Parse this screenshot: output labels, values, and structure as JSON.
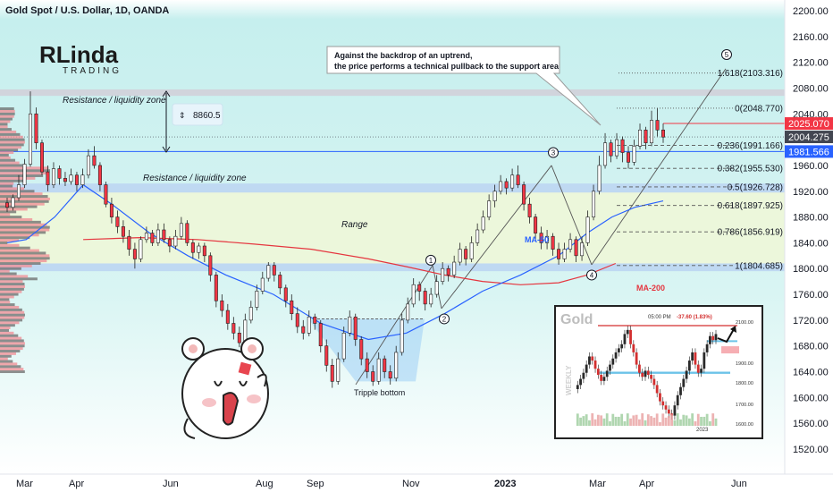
{
  "header": {
    "title": "Gold Spot / U.S. Dollar, 1D, OANDA"
  },
  "logo": {
    "text_top": "RLinda",
    "text_bottom": "TRADING"
  },
  "annotations": {
    "callout_line1": "Against the backdrop of an uptrend,",
    "callout_line2": "the price performs a technical pullback to the support area",
    "resistance_top": "Resistance / liquidity zone",
    "resistance_mid": "Resistance / liquidity zone",
    "range": "Range",
    "tripple_bottom": "Tripple bottom",
    "ma50": "MA-50",
    "ma200": "MA-200",
    "measure_value": "8860.5",
    "wave_points": [
      "1",
      "2",
      "3",
      "4",
      "5"
    ]
  },
  "price_tags": [
    {
      "value": "2025.070",
      "color": "#f23645"
    },
    {
      "value": "2004.275",
      "color": "#434651"
    },
    {
      "value": "1981.566",
      "color": "#2962ff"
    }
  ],
  "colors": {
    "bull": "#089981",
    "bear": "#f23645",
    "ma50": "#2962ff",
    "ma200": "#e5363f",
    "zone_band": "#d1d4dc",
    "resistance_band": "#bfd9f2",
    "range_fill": "#eef7d8",
    "chart_bg": "#c8f0ef"
  },
  "chart_data": {
    "type": "candlestick",
    "title": "Gold Spot / U.S. Dollar, 1D, OANDA",
    "y_axis": {
      "ticks": [
        2200,
        2160,
        2120,
        2080,
        2040,
        2000,
        1960,
        1920,
        1880,
        1840,
        1800,
        1760,
        1720,
        1680,
        1640,
        1600,
        1560,
        1520
      ],
      "ylim": [
        1490,
        2215
      ]
    },
    "x_axis": {
      "ticks": [
        "Mar",
        "Apr",
        "Jun",
        "Aug",
        "Sep",
        "Nov",
        "2023",
        "Mar",
        "Apr",
        "Jun"
      ]
    },
    "fibonacci": [
      {
        "ratio": "0",
        "price": 2048.77,
        "label": "0(2048.770)"
      },
      {
        "ratio": "0.236",
        "price": 1991.166,
        "label": "0.236(1991.166)"
      },
      {
        "ratio": "0.382",
        "price": 1955.53,
        "label": "0.382(1955.530)"
      },
      {
        "ratio": "0.5",
        "price": 1926.728,
        "label": "0.5(1926.728)"
      },
      {
        "ratio": "0.618",
        "price": 1897.925,
        "label": "0.618(1897.925)"
      },
      {
        "ratio": "0.786",
        "price": 1856.919,
        "label": "0.786(1856.919)"
      },
      {
        "ratio": "1",
        "price": 1804.685,
        "label": "1(1804.685)"
      },
      {
        "ratio": "1.618",
        "price": 2103.316,
        "label": "1.618(2103.316)"
      }
    ],
    "zones": {
      "resistance_top": [
        2068,
        2078
      ],
      "support_line": 1981.566,
      "resistance_mid": [
        1918,
        1932
      ],
      "range": [
        1800,
        1920
      ],
      "range_bottom_band": [
        1796,
        1808
      ]
    },
    "ma50": [
      [
        0,
        1840
      ],
      [
        10,
        1845
      ],
      [
        25,
        1880
      ],
      [
        40,
        1930
      ],
      [
        55,
        1900
      ],
      [
        75,
        1855
      ],
      [
        95,
        1820
      ],
      [
        115,
        1790
      ],
      [
        140,
        1760
      ],
      [
        165,
        1715
      ],
      [
        190,
        1690
      ],
      [
        210,
        1700
      ],
      [
        230,
        1730
      ],
      [
        250,
        1765
      ],
      [
        270,
        1790
      ],
      [
        290,
        1820
      ],
      [
        305,
        1855
      ],
      [
        318,
        1880
      ],
      [
        330,
        1895
      ],
      [
        345,
        1905
      ]
    ],
    "ma200": [
      [
        40,
        1845
      ],
      [
        70,
        1848
      ],
      [
        100,
        1845
      ],
      [
        130,
        1838
      ],
      [
        160,
        1830
      ],
      [
        190,
        1815
      ],
      [
        210,
        1803
      ],
      [
        230,
        1790
      ],
      [
        250,
        1780
      ],
      [
        270,
        1775
      ],
      [
        290,
        1778
      ],
      [
        305,
        1790
      ],
      [
        320,
        1808
      ]
    ],
    "candles": [
      [
        0,
        1902,
        1895,
        1910,
        1888
      ],
      [
        1,
        1895,
        1910,
        1915,
        1890
      ],
      [
        2,
        1910,
        1930,
        1945,
        1905
      ],
      [
        3,
        1930,
        1962,
        1970,
        1925
      ],
      [
        4,
        1962,
        2040,
        2075,
        1958
      ],
      [
        5,
        2040,
        1995,
        2050,
        1985
      ],
      [
        6,
        1995,
        1950,
        2000,
        1945
      ],
      [
        7,
        1950,
        1930,
        1960,
        1920
      ],
      [
        8,
        1930,
        1955,
        1965,
        1925
      ],
      [
        9,
        1955,
        1940,
        1960,
        1930
      ],
      [
        10,
        1940,
        1935,
        1950,
        1928
      ],
      [
        11,
        1935,
        1945,
        1955,
        1930
      ],
      [
        12,
        1945,
        1930,
        1950,
        1920
      ],
      [
        13,
        1930,
        1945,
        1955,
        1925
      ],
      [
        14,
        1945,
        1975,
        1985,
        1940
      ],
      [
        15,
        1975,
        1960,
        1990,
        1955
      ],
      [
        16,
        1960,
        1930,
        1965,
        1920
      ],
      [
        17,
        1930,
        1900,
        1935,
        1895
      ],
      [
        18,
        1900,
        1880,
        1910,
        1870
      ],
      [
        19,
        1880,
        1865,
        1890,
        1855
      ],
      [
        20,
        1865,
        1850,
        1875,
        1840
      ],
      [
        21,
        1850,
        1830,
        1860,
        1820
      ],
      [
        22,
        1830,
        1815,
        1840,
        1800
      ],
      [
        23,
        1815,
        1845,
        1850,
        1810
      ],
      [
        24,
        1845,
        1855,
        1865,
        1840
      ],
      [
        25,
        1855,
        1840,
        1860,
        1835
      ],
      [
        26,
        1840,
        1860,
        1870,
        1835
      ],
      [
        27,
        1860,
        1845,
        1870,
        1840
      ],
      [
        28,
        1845,
        1835,
        1850,
        1825
      ],
      [
        29,
        1835,
        1850,
        1860,
        1830
      ],
      [
        30,
        1850,
        1870,
        1880,
        1845
      ],
      [
        31,
        1870,
        1840,
        1875,
        1835
      ],
      [
        32,
        1840,
        1825,
        1845,
        1815
      ],
      [
        33,
        1825,
        1835,
        1840,
        1815
      ],
      [
        34,
        1835,
        1820,
        1840,
        1810
      ],
      [
        35,
        1820,
        1790,
        1825,
        1780
      ],
      [
        36,
        1790,
        1750,
        1795,
        1740
      ],
      [
        37,
        1750,
        1735,
        1760,
        1725
      ],
      [
        38,
        1735,
        1715,
        1745,
        1705
      ],
      [
        39,
        1715,
        1700,
        1725,
        1690
      ],
      [
        40,
        1700,
        1685,
        1710,
        1678
      ],
      [
        41,
        1685,
        1720,
        1730,
        1680
      ],
      [
        42,
        1720,
        1740,
        1750,
        1715
      ],
      [
        43,
        1740,
        1765,
        1775,
        1735
      ],
      [
        44,
        1765,
        1785,
        1795,
        1760
      ],
      [
        45,
        1785,
        1805,
        1810,
        1780
      ],
      [
        46,
        1805,
        1790,
        1810,
        1780
      ],
      [
        47,
        1790,
        1770,
        1795,
        1760
      ],
      [
        48,
        1770,
        1750,
        1775,
        1740
      ],
      [
        49,
        1750,
        1730,
        1760,
        1720
      ],
      [
        50,
        1730,
        1710,
        1740,
        1700
      ],
      [
        51,
        1710,
        1700,
        1720,
        1690
      ],
      [
        52,
        1700,
        1725,
        1735,
        1695
      ],
      [
        53,
        1725,
        1715,
        1730,
        1705
      ],
      [
        54,
        1715,
        1680,
        1720,
        1670
      ],
      [
        55,
        1680,
        1650,
        1690,
        1640
      ],
      [
        56,
        1650,
        1625,
        1660,
        1615
      ],
      [
        57,
        1625,
        1660,
        1670,
        1620
      ],
      [
        58,
        1660,
        1700,
        1710,
        1655
      ],
      [
        59,
        1700,
        1725,
        1735,
        1695
      ],
      [
        60,
        1725,
        1690,
        1730,
        1680
      ],
      [
        61,
        1690,
        1660,
        1695,
        1650
      ],
      [
        62,
        1660,
        1640,
        1670,
        1630
      ],
      [
        63,
        1640,
        1625,
        1650,
        1618
      ],
      [
        64,
        1625,
        1660,
        1670,
        1620
      ],
      [
        65,
        1660,
        1640,
        1665,
        1630
      ],
      [
        66,
        1640,
        1630,
        1650,
        1620
      ],
      [
        67,
        1630,
        1670,
        1680,
        1625
      ],
      [
        68,
        1670,
        1720,
        1730,
        1665
      ],
      [
        69,
        1720,
        1745,
        1755,
        1715
      ],
      [
        70,
        1745,
        1775,
        1785,
        1740
      ],
      [
        71,
        1775,
        1765,
        1780,
        1750
      ],
      [
        72,
        1765,
        1745,
        1770,
        1735
      ],
      [
        73,
        1745,
        1760,
        1770,
        1740
      ],
      [
        74,
        1760,
        1780,
        1790,
        1755
      ],
      [
        75,
        1780,
        1800,
        1810,
        1775
      ],
      [
        76,
        1800,
        1790,
        1805,
        1780
      ],
      [
        77,
        1790,
        1810,
        1820,
        1785
      ],
      [
        78,
        1810,
        1830,
        1840,
        1805
      ],
      [
        79,
        1830,
        1815,
        1835,
        1805
      ],
      [
        80,
        1815,
        1840,
        1850,
        1810
      ],
      [
        81,
        1840,
        1860,
        1870,
        1835
      ],
      [
        82,
        1860,
        1880,
        1890,
        1855
      ],
      [
        83,
        1880,
        1905,
        1915,
        1875
      ],
      [
        84,
        1905,
        1920,
        1930,
        1895
      ],
      [
        85,
        1920,
        1935,
        1945,
        1915
      ],
      [
        86,
        1935,
        1925,
        1940,
        1915
      ],
      [
        87,
        1925,
        1945,
        1955,
        1920
      ],
      [
        88,
        1945,
        1930,
        1960,
        1925
      ],
      [
        89,
        1930,
        1900,
        1935,
        1890
      ],
      [
        90,
        1900,
        1880,
        1910,
        1870
      ],
      [
        91,
        1880,
        1855,
        1885,
        1845
      ],
      [
        92,
        1855,
        1840,
        1865,
        1830
      ],
      [
        93,
        1840,
        1850,
        1860,
        1830
      ],
      [
        94,
        1850,
        1830,
        1855,
        1820
      ],
      [
        95,
        1830,
        1815,
        1840,
        1806
      ],
      [
        96,
        1815,
        1830,
        1840,
        1810
      ],
      [
        97,
        1830,
        1845,
        1855,
        1825
      ],
      [
        98,
        1845,
        1820,
        1850,
        1810
      ],
      [
        99,
        1820,
        1840,
        1850,
        1812
      ],
      [
        100,
        1840,
        1880,
        1890,
        1835
      ],
      [
        101,
        1880,
        1920,
        1930,
        1875
      ],
      [
        102,
        1920,
        1960,
        1975,
        1915
      ],
      [
        103,
        1960,
        1995,
        2010,
        1955
      ],
      [
        104,
        1995,
        1975,
        2000,
        1965
      ],
      [
        105,
        1975,
        2000,
        2010,
        1970
      ],
      [
        106,
        2000,
        1980,
        2005,
        1965
      ],
      [
        107,
        1980,
        1965,
        1990,
        1955
      ],
      [
        108,
        1965,
        1990,
        2000,
        1960
      ],
      [
        109,
        1990,
        2015,
        2025,
        1985
      ],
      [
        110,
        2015,
        1995,
        2020,
        1985
      ],
      [
        111,
        1995,
        2030,
        2045,
        1990
      ],
      [
        112,
        2030,
        2015,
        2049,
        2005
      ],
      [
        113,
        2015,
        2004,
        2025,
        1995
      ]
    ]
  },
  "inset": {
    "title": "Gold",
    "header_time": "05:00 PM",
    "header_change": "-37.60 (1.83%)",
    "axis_label": "WEEKLY",
    "year_label": "2023",
    "ticks": [
      "2100.00",
      "1900.00",
      "1800.00",
      "1700.00",
      "1600.00"
    ],
    "series": [
      1780,
      1800,
      1830,
      1860,
      1900,
      1940,
      1920,
      1880,
      1850,
      1820,
      1840,
      1870,
      1900,
      1930,
      1960,
      1980,
      2000,
      2050,
      2070,
      2000,
      1960,
      1900,
      1860,
      1840,
      1870,
      1850,
      1830,
      1800,
      1760,
      1720,
      1700,
      1680,
      1660,
      1650,
      1700,
      1750,
      1790,
      1830,
      1870,
      1920,
      1960,
      1900,
      1860,
      1880,
      1960,
      2000,
      2040,
      2020,
      2050
    ]
  }
}
